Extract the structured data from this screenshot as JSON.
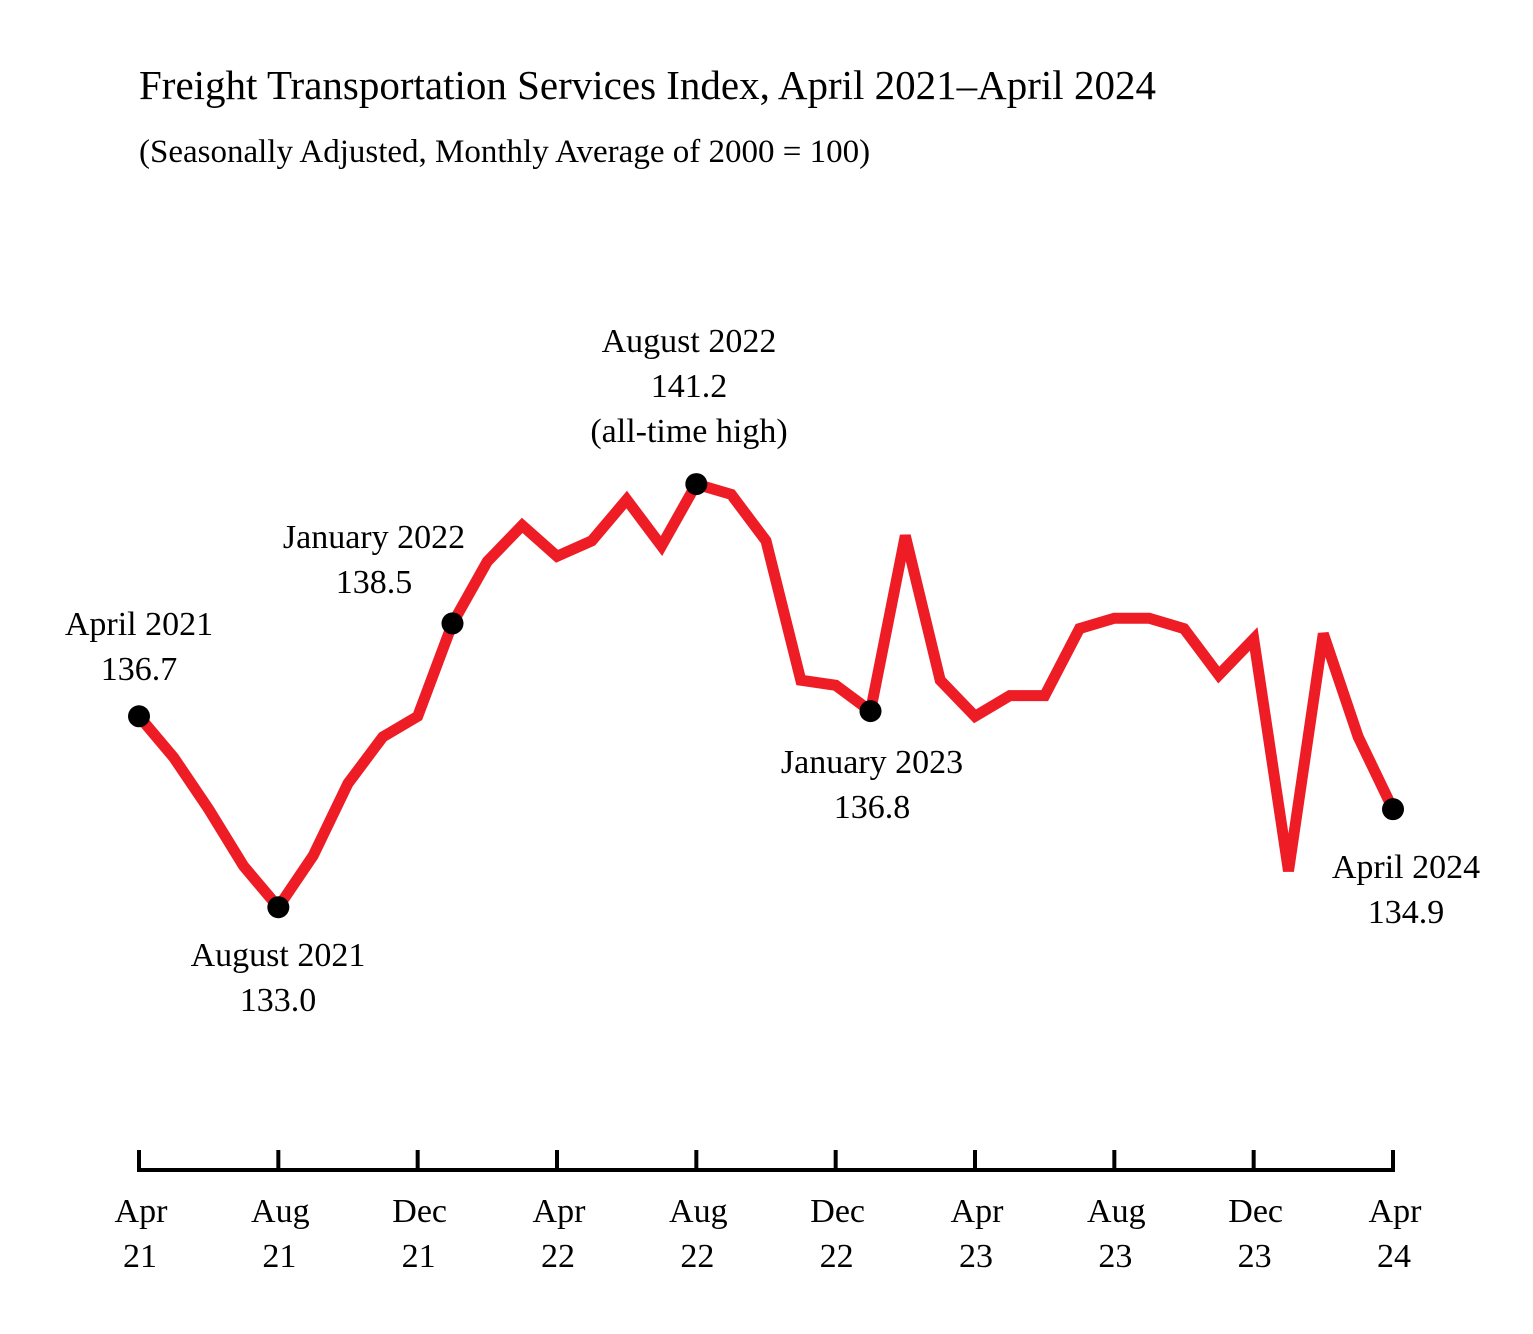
{
  "chart_data": {
    "type": "line",
    "title": "Freight Transportation Services Index, April 2021–April 2024",
    "subtitle": "(Seasonally Adjusted, Monthly Average of 2000 = 100)",
    "xlabel": "",
    "ylabel": "",
    "grid": false,
    "line_color": "#ee1c25",
    "marker_color": "#000000",
    "x": [
      "2021-04",
      "2021-05",
      "2021-06",
      "2021-07",
      "2021-08",
      "2021-09",
      "2021-10",
      "2021-11",
      "2021-12",
      "2022-01",
      "2022-02",
      "2022-03",
      "2022-04",
      "2022-05",
      "2022-06",
      "2022-07",
      "2022-08",
      "2022-09",
      "2022-10",
      "2022-11",
      "2022-12",
      "2023-01",
      "2023-02",
      "2023-03",
      "2023-04",
      "2023-05",
      "2023-06",
      "2023-07",
      "2023-08",
      "2023-09",
      "2023-10",
      "2023-11",
      "2023-12",
      "2024-01",
      "2024-02",
      "2024-03",
      "2024-04"
    ],
    "values": [
      136.7,
      135.9,
      134.9,
      133.8,
      133.0,
      134.0,
      135.4,
      136.3,
      136.7,
      138.5,
      139.7,
      140.4,
      139.8,
      140.1,
      140.9,
      140.0,
      141.2,
      141.0,
      140.1,
      137.4,
      137.3,
      136.8,
      140.2,
      137.4,
      136.7,
      137.1,
      137.1,
      138.4,
      138.6,
      138.6,
      138.4,
      137.5,
      138.2,
      133.7,
      138.3,
      136.3,
      134.9
    ],
    "x_ticks": [
      {
        "index": 0,
        "month": "Apr",
        "year": "21"
      },
      {
        "index": 4,
        "month": "Aug",
        "year": "21"
      },
      {
        "index": 8,
        "month": "Dec",
        "year": "21"
      },
      {
        "index": 12,
        "month": "Apr",
        "year": "22"
      },
      {
        "index": 16,
        "month": "Aug",
        "year": "22"
      },
      {
        "index": 20,
        "month": "Dec",
        "year": "22"
      },
      {
        "index": 24,
        "month": "Apr",
        "year": "23"
      },
      {
        "index": 28,
        "month": "Aug",
        "year": "23"
      },
      {
        "index": 32,
        "month": "Dec",
        "year": "23"
      },
      {
        "index": 36,
        "month": "Apr",
        "year": "24"
      }
    ],
    "annotations": [
      {
        "index": 0,
        "lines": [
          "April 2021",
          "136.7"
        ]
      },
      {
        "index": 4,
        "lines": [
          "August 2021",
          "133.0"
        ]
      },
      {
        "index": 9,
        "lines": [
          "January 2022",
          "138.5"
        ]
      },
      {
        "index": 16,
        "lines": [
          "August 2022",
          "141.2",
          "(all-time high)"
        ]
      },
      {
        "index": 21,
        "lines": [
          "January 2023",
          "136.8"
        ]
      },
      {
        "index": 36,
        "lines": [
          "April 2024",
          "134.9"
        ]
      }
    ]
  }
}
